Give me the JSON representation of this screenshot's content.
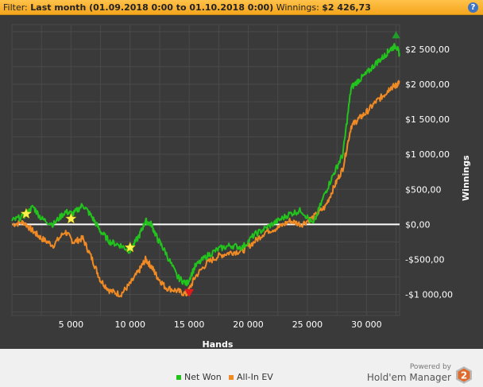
{
  "filter": {
    "label": "Filter:",
    "range": "Last month (01.09.2018 0:00 to 01.10.2018 0:00)",
    "winnings_label": "Winnings:",
    "winnings_value": "$2 426,73",
    "help_glyph": "?"
  },
  "colors": {
    "net_won": "#22c31c",
    "all_in_ev": "#f08a24",
    "background": "#3a3a3a",
    "grid": "#4a4a4a",
    "zero_line": "#ffffff",
    "star": "#fff04d",
    "max_marker": "#1f9e2a",
    "min_marker": "#e11b1b"
  },
  "chart_data": {
    "type": "line",
    "xlabel": "Hands",
    "ylabel": "Winnings",
    "xlim": [
      0,
      32800
    ],
    "ylim": [
      -1300,
      2850
    ],
    "xticks": [
      5000,
      10000,
      15000,
      20000,
      25000,
      30000
    ],
    "xtick_labels": [
      "5 000",
      "10 000",
      "15 000",
      "20 000",
      "25 000",
      "30 000"
    ],
    "yticks": [
      -1000,
      -500,
      0,
      500,
      1000,
      1500,
      2000,
      2500
    ],
    "ytick_labels": [
      "-$1 000,00",
      "-$500,00",
      "$0,00",
      "$500,00",
      "$1 000,00",
      "$1 500,00",
      "$2 000,00",
      "$2 500,00"
    ],
    "grid": true,
    "x": [
      0,
      1000,
      1800,
      2500,
      3500,
      4500,
      5200,
      6000,
      6800,
      7500,
      8300,
      9200,
      10000,
      10800,
      11300,
      11800,
      12300,
      13000,
      14000,
      14800,
      15500,
      16500,
      17500,
      18500,
      19500,
      20500,
      21500,
      22500,
      23500,
      24500,
      25500,
      26500,
      27300,
      28000,
      28700,
      29300,
      30000,
      30800,
      31500,
      32000,
      32500,
      32800
    ],
    "series": [
      {
        "name": "Net Won",
        "values": [
          50,
          120,
          250,
          80,
          0,
          180,
          150,
          280,
          100,
          -100,
          -250,
          -300,
          -380,
          -150,
          50,
          0,
          -200,
          -400,
          -750,
          -850,
          -600,
          -450,
          -350,
          -300,
          -330,
          -150,
          -50,
          50,
          150,
          200,
          0,
          450,
          750,
          1000,
          1950,
          2050,
          2150,
          2300,
          2400,
          2500,
          2550,
          2426.73
        ]
      },
      {
        "name": "All-In EV",
        "values": [
          0,
          30,
          -100,
          -200,
          -300,
          -100,
          -250,
          -200,
          -500,
          -800,
          -950,
          -1000,
          -850,
          -650,
          -500,
          -600,
          -750,
          -900,
          -950,
          -1000,
          -750,
          -550,
          -450,
          -400,
          -380,
          -250,
          -100,
          -50,
          50,
          0,
          100,
          250,
          550,
          800,
          1400,
          1500,
          1600,
          1750,
          1850,
          1950,
          1980,
          2030
        ]
      }
    ],
    "markers": [
      {
        "type": "star",
        "x": 1200,
        "y": 150
      },
      {
        "type": "star",
        "x": 5000,
        "y": 80
      },
      {
        "type": "star",
        "x": 10000,
        "y": -330
      },
      {
        "type": "max",
        "x": 32500,
        "y": 2700
      },
      {
        "type": "min",
        "x": 15000,
        "y": -980
      }
    ]
  },
  "legend": {
    "placement": "bottom",
    "items": [
      "Net Won",
      "All-In EV"
    ]
  },
  "branding": {
    "powered_by": "Powered by",
    "product": "Hold'em Manager",
    "version_glyph": "2"
  }
}
